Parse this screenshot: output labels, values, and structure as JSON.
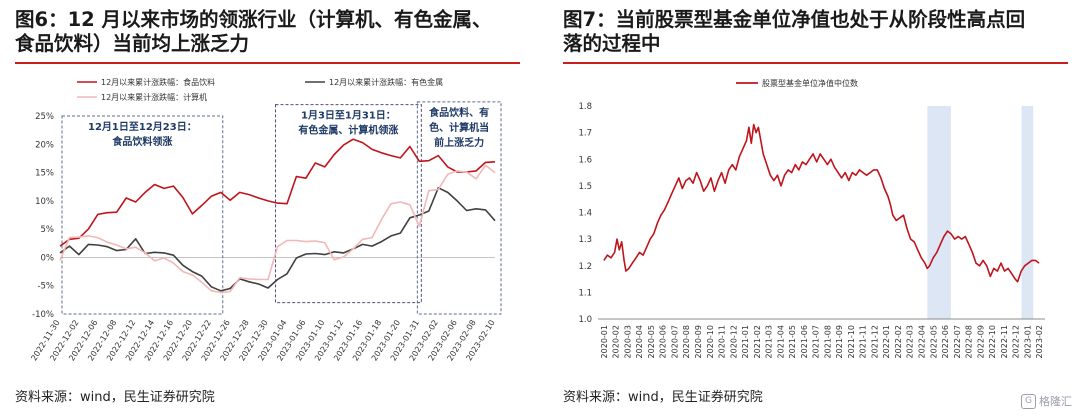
{
  "left": {
    "title": "图6：12 月以来市场的领涨行业（计算机、有色金属、\n食品饮料）当前均上涨乏力",
    "source": "资料来源：wind，民生证券研究院",
    "annotations": [
      {
        "lines": [
          "12月1日至12月23日：",
          "食品饮料领涨"
        ]
      },
      {
        "lines": [
          "1月3日至1月31日：",
          "有色金属、计算机领涨"
        ]
      },
      {
        "lines": [
          "食品饮料、有",
          "色、计算机当",
          "前上涨乏力"
        ]
      }
    ],
    "chart_data": {
      "type": "line",
      "x": [
        "2022-11-30",
        "2022-12-01",
        "2022-12-02",
        "2022-12-05",
        "2022-12-06",
        "2022-12-07",
        "2022-12-08",
        "2022-12-09",
        "2022-12-12",
        "2022-12-13",
        "2022-12-14",
        "2022-12-15",
        "2022-12-16",
        "2022-12-19",
        "2022-12-20",
        "2022-12-21",
        "2022-12-22",
        "2022-12-23",
        "2022-12-26",
        "2022-12-27",
        "2022-12-28",
        "2022-12-29",
        "2022-12-30",
        "2023-01-03",
        "2023-01-04",
        "2023-01-05",
        "2023-01-06",
        "2023-01-09",
        "2023-01-10",
        "2023-01-11",
        "2023-01-12",
        "2023-01-13",
        "2023-01-16",
        "2023-01-17",
        "2023-01-18",
        "2023-01-19",
        "2023-01-20",
        "2023-01-30",
        "2023-01-31",
        "2023-02-01",
        "2023-02-02",
        "2023-02-03",
        "2023-02-06",
        "2023-02-07",
        "2023-02-08",
        "2023-02-09",
        "2023-02-10"
      ],
      "x_tick_labels": [
        "2022-11-30",
        "2022-12-02",
        "2022-12-06",
        "2022-12-08",
        "2022-12-12",
        "2022-12-14",
        "2022-12-16",
        "2022-12-20",
        "2022-12-22",
        "2022-12-26",
        "2022-12-28",
        "2022-12-30",
        "2023-01-04",
        "2023-01-06",
        "2023-01-10",
        "2023-01-12",
        "2023-01-16",
        "2023-01-18",
        "2023-01-20",
        "2023-01-31",
        "2023-02-02",
        "2023-02-06",
        "2023-02-08",
        "2023-02-10"
      ],
      "yticks": [
        "25%",
        "20%",
        "15%",
        "10%",
        "5%",
        "0%",
        "-5%",
        "-10%"
      ],
      "ylim": [
        -10,
        25
      ],
      "series": [
        {
          "name": "12月以来累计涨跌幅：食品饮料",
          "color": "#c0141c",
          "values": [
            2.0,
            3.2,
            3.4,
            5.0,
            7.6,
            7.9,
            8.0,
            10.5,
            9.8,
            11.5,
            12.9,
            12.2,
            12.6,
            10.6,
            7.7,
            9.2,
            10.8,
            11.5,
            10.1,
            11.5,
            11.1,
            10.5,
            10.0,
            9.6,
            9.5,
            14.3,
            14.0,
            16.7,
            16.0,
            18.2,
            19.9,
            20.9,
            20.3,
            19.1,
            18.5,
            18.0,
            17.6,
            19.6,
            17.0,
            17.1,
            18.0,
            16.0,
            15.1,
            15.1,
            15.3,
            16.8,
            16.9
          ]
        },
        {
          "name": "12月以来累计涨跌幅：有色金属",
          "color": "#404040",
          "values": [
            0.8,
            2.0,
            0.5,
            2.3,
            2.2,
            1.9,
            1.2,
            1.4,
            3.3,
            0.7,
            0.9,
            0.8,
            0.4,
            -1.4,
            -2.5,
            -3.3,
            -5.2,
            -5.9,
            -5.5,
            -3.8,
            -4.3,
            -4.7,
            -5.4,
            -3.9,
            -2.9,
            -0.1,
            0.6,
            0.7,
            0.5,
            1.0,
            0.8,
            1.5,
            2.3,
            2.0,
            2.8,
            3.8,
            4.3,
            7.0,
            7.5,
            8.2,
            12.3,
            11.5,
            10.0,
            8.3,
            8.6,
            8.4,
            6.5
          ]
        },
        {
          "name": "12月以来累计涨跌幅：计算机",
          "color": "#f2b7b7",
          "values": [
            -0.5,
            3.5,
            3.6,
            3.8,
            3.5,
            2.7,
            2.2,
            1.5,
            1.8,
            0.8,
            -0.6,
            -0.1,
            -1.0,
            -2.5,
            -3.1,
            -4.4,
            -5.9,
            -6.2,
            -6.0,
            -3.6,
            -3.8,
            -3.9,
            -3.9,
            1.9,
            3.0,
            3.0,
            2.8,
            2.9,
            2.6,
            -0.4,
            0.1,
            1.5,
            3.2,
            3.5,
            6.7,
            9.5,
            9.8,
            9.3,
            5.5,
            11.8,
            12.0,
            14.7,
            15.3,
            15.1,
            13.9,
            16.3,
            15.0
          ]
        }
      ]
    }
  },
  "right": {
    "title": "图7：当前股票型基金单位净值也处于从阶段性高点回\n落的过程中",
    "source": "资料来源：wind，民生证券研究院",
    "watermark": "格隆汇",
    "chart_data": {
      "type": "line",
      "x_tick_labels": [
        "2020-01",
        "2020-02",
        "2020-03",
        "2020-04",
        "2020-05",
        "2020-06",
        "2020-07",
        "2020-08",
        "2020-09",
        "2020-10",
        "2020-11",
        "2020-12",
        "2021-01",
        "2021-02",
        "2021-03",
        "2021-04",
        "2021-05",
        "2021-06",
        "2021-07",
        "2021-08",
        "2021-09",
        "2021-10",
        "2021-11",
        "2021-12",
        "2022-01",
        "2022-02",
        "2022-03",
        "2022-04",
        "2022-05",
        "2022-06",
        "2022-07",
        "2022-08",
        "2022-09",
        "2022-10",
        "2022-11",
        "2022-12",
        "2023-01",
        "2023-02"
      ],
      "yticks": [
        "1.8",
        "1.7",
        "1.6",
        "1.5",
        "1.4",
        "1.3",
        "1.2",
        "1.1",
        "1.0"
      ],
      "ylim": [
        1.0,
        1.8
      ],
      "shaded_ranges": [
        [
          "2022-05",
          "2022-06"
        ],
        [
          "2023-01",
          "2023-01"
        ]
      ],
      "series": [
        {
          "name": "股票型基金单位净值中位数",
          "color": "#c0141c",
          "points": [
            [
              0.0,
              1.22
            ],
            [
              0.3,
              1.24
            ],
            [
              0.6,
              1.23
            ],
            [
              0.9,
              1.25
            ],
            [
              1.1,
              1.3
            ],
            [
              1.3,
              1.26
            ],
            [
              1.5,
              1.29
            ],
            [
              1.7,
              1.22
            ],
            [
              1.85,
              1.18
            ],
            [
              2.1,
              1.19
            ],
            [
              2.4,
              1.21
            ],
            [
              2.7,
              1.23
            ],
            [
              3.0,
              1.25
            ],
            [
              3.3,
              1.24
            ],
            [
              3.6,
              1.27
            ],
            [
              3.9,
              1.3
            ],
            [
              4.2,
              1.32
            ],
            [
              4.5,
              1.36
            ],
            [
              4.8,
              1.39
            ],
            [
              5.1,
              1.41
            ],
            [
              5.4,
              1.44
            ],
            [
              5.7,
              1.47
            ],
            [
              6.0,
              1.5
            ],
            [
              6.3,
              1.53
            ],
            [
              6.6,
              1.49
            ],
            [
              6.9,
              1.52
            ],
            [
              7.2,
              1.53
            ],
            [
              7.5,
              1.51
            ],
            [
              7.8,
              1.55
            ],
            [
              8.1,
              1.52
            ],
            [
              8.4,
              1.48
            ],
            [
              8.7,
              1.5
            ],
            [
              9.0,
              1.53
            ],
            [
              9.3,
              1.48
            ],
            [
              9.6,
              1.52
            ],
            [
              9.9,
              1.55
            ],
            [
              10.2,
              1.51
            ],
            [
              10.5,
              1.56
            ],
            [
              10.8,
              1.58
            ],
            [
              11.1,
              1.56
            ],
            [
              11.4,
              1.61
            ],
            [
              11.7,
              1.64
            ],
            [
              12.0,
              1.67
            ],
            [
              12.2,
              1.72
            ],
            [
              12.4,
              1.66
            ],
            [
              12.6,
              1.73
            ],
            [
              12.8,
              1.7
            ],
            [
              13.0,
              1.72
            ],
            [
              13.2,
              1.67
            ],
            [
              13.4,
              1.62
            ],
            [
              13.7,
              1.58
            ],
            [
              14.0,
              1.54
            ],
            [
              14.3,
              1.52
            ],
            [
              14.6,
              1.54
            ],
            [
              14.9,
              1.5
            ],
            [
              15.2,
              1.54
            ],
            [
              15.5,
              1.56
            ],
            [
              15.8,
              1.55
            ],
            [
              16.1,
              1.58
            ],
            [
              16.4,
              1.56
            ],
            [
              16.7,
              1.59
            ],
            [
              17.0,
              1.58
            ],
            [
              17.3,
              1.6
            ],
            [
              17.6,
              1.62
            ],
            [
              17.9,
              1.59
            ],
            [
              18.2,
              1.62
            ],
            [
              18.5,
              1.6
            ],
            [
              18.8,
              1.58
            ],
            [
              19.1,
              1.6
            ],
            [
              19.4,
              1.57
            ],
            [
              19.7,
              1.55
            ],
            [
              20.0,
              1.53
            ],
            [
              20.3,
              1.55
            ],
            [
              20.6,
              1.52
            ],
            [
              20.9,
              1.55
            ],
            [
              21.2,
              1.54
            ],
            [
              21.5,
              1.56
            ],
            [
              21.8,
              1.55
            ],
            [
              22.1,
              1.54
            ],
            [
              22.4,
              1.55
            ],
            [
              22.7,
              1.56
            ],
            [
              23.0,
              1.56
            ],
            [
              23.3,
              1.53
            ],
            [
              23.6,
              1.49
            ],
            [
              23.9,
              1.46
            ],
            [
              24.1,
              1.43
            ],
            [
              24.3,
              1.39
            ],
            [
              24.6,
              1.37
            ],
            [
              24.9,
              1.38
            ],
            [
              25.2,
              1.39
            ],
            [
              25.5,
              1.34
            ],
            [
              25.8,
              1.3
            ],
            [
              26.1,
              1.29
            ],
            [
              26.4,
              1.26
            ],
            [
              26.7,
              1.23
            ],
            [
              27.0,
              1.21
            ],
            [
              27.2,
              1.19
            ],
            [
              27.4,
              1.2
            ],
            [
              27.7,
              1.23
            ],
            [
              28.0,
              1.25
            ],
            [
              28.3,
              1.28
            ],
            [
              28.6,
              1.31
            ],
            [
              28.9,
              1.33
            ],
            [
              29.2,
              1.32
            ],
            [
              29.5,
              1.3
            ],
            [
              29.8,
              1.31
            ],
            [
              30.1,
              1.3
            ],
            [
              30.4,
              1.31
            ],
            [
              30.7,
              1.28
            ],
            [
              31.0,
              1.25
            ],
            [
              31.3,
              1.21
            ],
            [
              31.6,
              1.2
            ],
            [
              31.9,
              1.22
            ],
            [
              32.2,
              1.2
            ],
            [
              32.5,
              1.16
            ],
            [
              32.8,
              1.19
            ],
            [
              33.1,
              1.18
            ],
            [
              33.4,
              1.21
            ],
            [
              33.7,
              1.18
            ],
            [
              34.0,
              1.19
            ],
            [
              34.3,
              1.17
            ],
            [
              34.6,
              1.15
            ],
            [
              34.8,
              1.14
            ],
            [
              35.1,
              1.18
            ],
            [
              35.4,
              1.2
            ],
            [
              35.7,
              1.21
            ],
            [
              36.0,
              1.22
            ],
            [
              36.3,
              1.22
            ],
            [
              36.6,
              1.21
            ]
          ]
        }
      ]
    }
  }
}
